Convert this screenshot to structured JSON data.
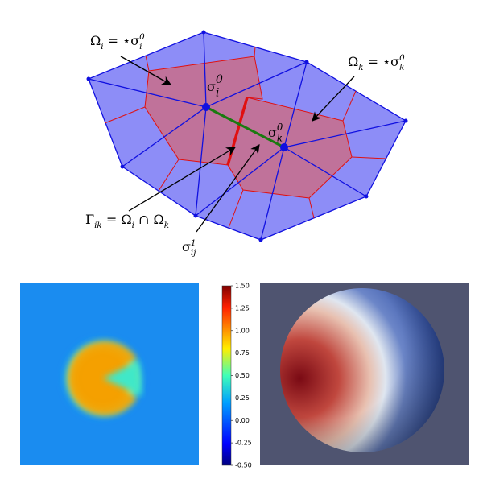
{
  "labels": [
    {
      "parts": [
        {
          "t": "Ω"
        },
        {
          "t": "i",
          "pos": "sub"
        },
        {
          "t": " = ⋆σ"
        },
        {
          "t": "i",
          "pos": "sub"
        },
        {
          "t": "0",
          "pos": "sup"
        }
      ]
    },
    {
      "parts": [
        {
          "t": "Ω"
        },
        {
          "t": "k",
          "pos": "sub"
        },
        {
          "t": " = ⋆σ"
        },
        {
          "t": "k",
          "pos": "sub"
        },
        {
          "t": "0",
          "pos": "sup"
        }
      ]
    },
    {
      "parts": [
        {
          "t": "σ"
        },
        {
          "t": "i",
          "pos": "sub"
        },
        {
          "t": "0",
          "pos": "sup"
        }
      ]
    },
    {
      "parts": [
        {
          "t": "σ"
        },
        {
          "t": "k",
          "pos": "sub"
        },
        {
          "t": "0",
          "pos": "sup"
        }
      ]
    },
    {
      "parts": [
        {
          "t": "Γ"
        },
        {
          "t": "ik",
          "pos": "sub"
        },
        {
          "t": " = Ω"
        },
        {
          "t": "i",
          "pos": "sub"
        },
        {
          "t": " ∩ Ω"
        },
        {
          "t": "k",
          "pos": "sub"
        }
      ]
    },
    {
      "parts": [
        {
          "t": "σ"
        },
        {
          "t": "ij",
          "pos": "sub"
        },
        {
          "t": "1",
          "pos": "sup"
        }
      ]
    }
  ],
  "colorbar": {
    "lim": [
      -0.5,
      1.5
    ],
    "ticks": [
      {
        "value": 1.5,
        "label": "1.50"
      },
      {
        "value": 1.25,
        "label": "1.25"
      },
      {
        "value": 1.0,
        "label": "1.00"
      },
      {
        "value": 0.75,
        "label": "0.75"
      },
      {
        "value": 0.5,
        "label": "0.50"
      },
      {
        "value": 0.25,
        "label": "0.25"
      },
      {
        "value": 0.0,
        "label": "0.00"
      },
      {
        "value": -0.25,
        "label": "-0.25"
      },
      {
        "value": -0.5,
        "label": "-0.50"
      }
    ]
  }
}
